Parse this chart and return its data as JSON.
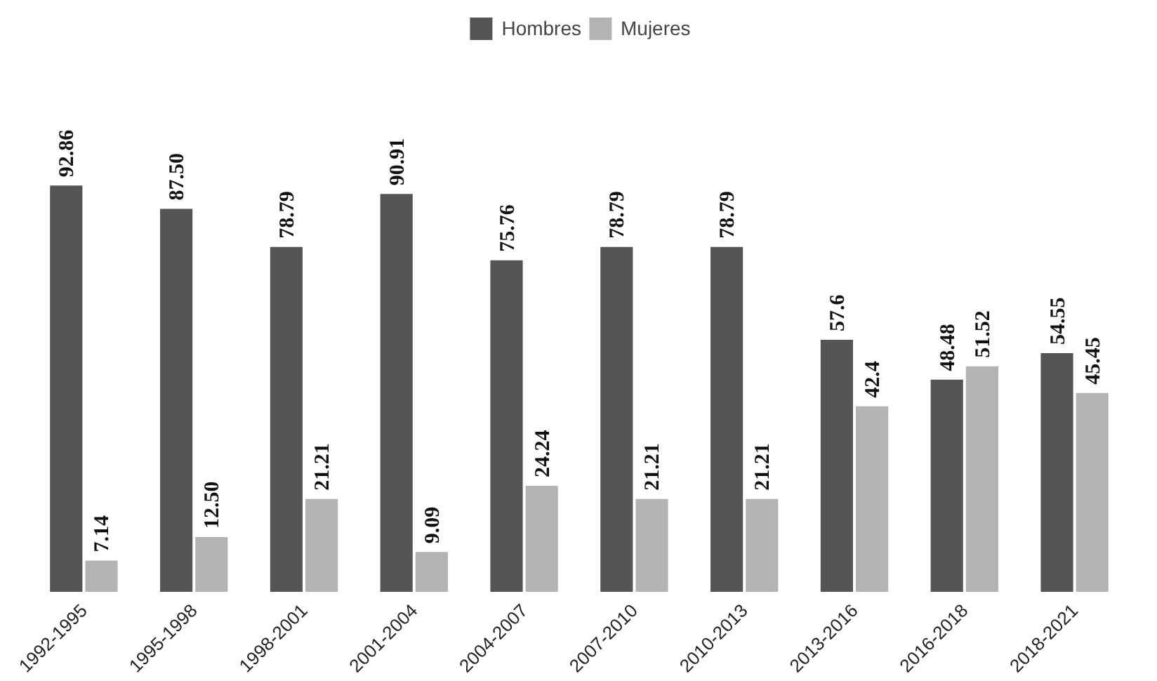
{
  "chart_data": {
    "type": "bar",
    "categories": [
      "1992-1995",
      "1995-1998",
      "1998-2001",
      "2001-2004",
      "2004-2007",
      "2007-2010",
      "2010-2013",
      "2013-2016",
      "2016-2018",
      "2018-2021"
    ],
    "series": [
      {
        "name": "Hombres",
        "color": "#555555",
        "values": [
          92.86,
          87.5,
          78.79,
          90.91,
          75.76,
          78.79,
          78.79,
          57.6,
          48.48,
          54.55
        ],
        "value_labels": [
          "92.86",
          "87.50",
          "78.79",
          "90.91",
          "75.76",
          "78.79",
          "78.79",
          "57.6",
          "48.48",
          "54.55"
        ]
      },
      {
        "name": "Mujeres",
        "color": "#b3b3b3",
        "values": [
          7.14,
          12.5,
          21.21,
          9.09,
          24.24,
          21.21,
          21.21,
          42.4,
          51.52,
          45.45
        ],
        "value_labels": [
          "7.14",
          "12.50",
          "21.21",
          "9.09",
          "24.24",
          "21.21",
          "21.21",
          "42.4",
          "51.52",
          "45.45"
        ]
      }
    ],
    "legend": "top",
    "grid": false,
    "tick_labels": "x"
  }
}
